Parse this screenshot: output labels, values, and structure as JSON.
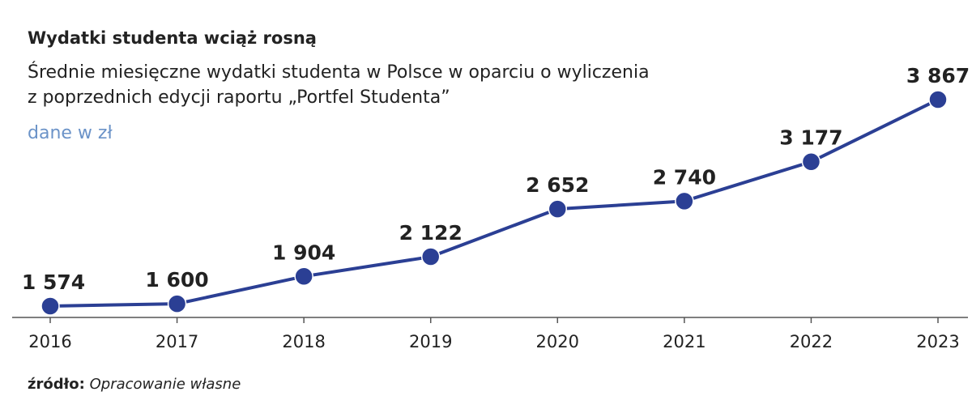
{
  "chart_data": {
    "type": "line",
    "title": "Wydatki studenta wciąż rosną",
    "subtitle": [
      "Średnie miesięczne wydatki studenta w Polsce w oparciu o wyliczenia",
      "z poprzednich edycji raportu „Portfel Studenta”"
    ],
    "unit": "dane w zł",
    "source": {
      "label": "źródło:",
      "text": "Opracowanie własne"
    },
    "categories": [
      "2016",
      "2017",
      "2018",
      "2019",
      "2020",
      "2021",
      "2022",
      "2023"
    ],
    "values": [
      1574,
      1600,
      1904,
      2122,
      2652,
      2740,
      3177,
      3867
    ],
    "value_labels": [
      "1 574",
      "1 600",
      "1 904",
      "2 122",
      "2 652",
      "2 740",
      "3 177",
      "3 867"
    ],
    "color": "#2b3f94"
  }
}
